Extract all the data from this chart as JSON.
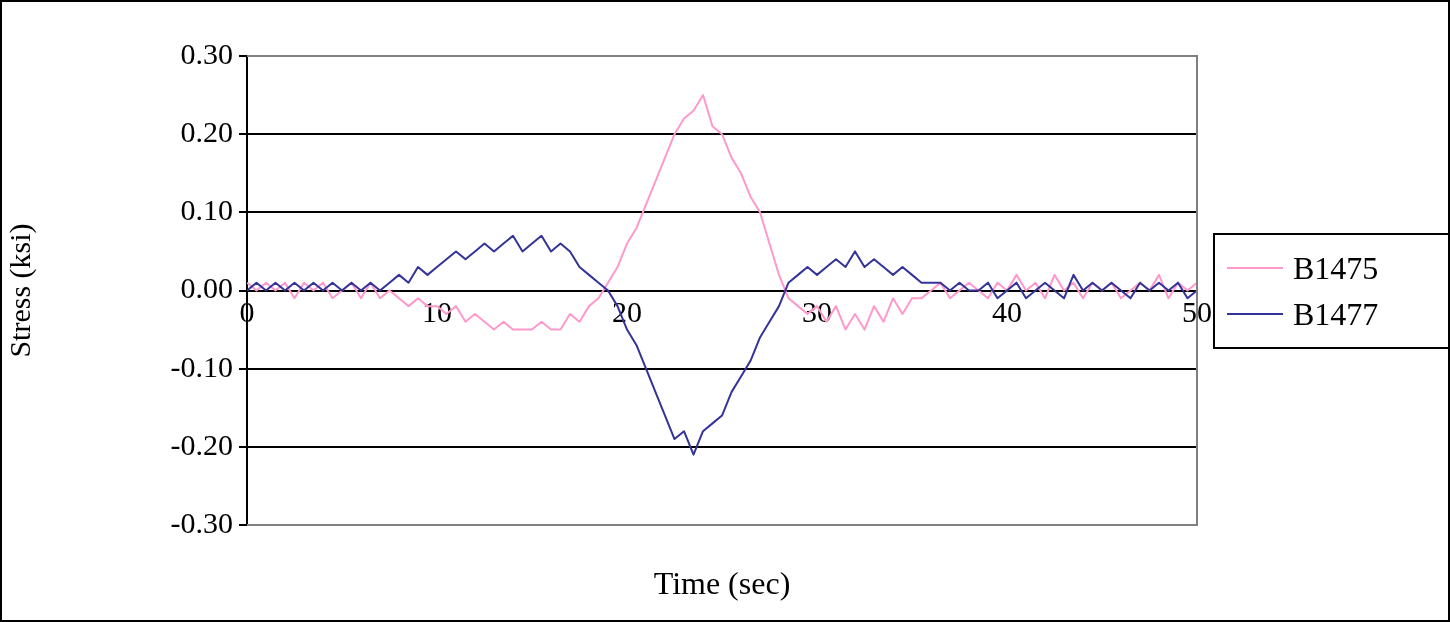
{
  "chart_data": {
    "type": "line",
    "xlabel": "Time (sec)",
    "ylabel": "Stress (ksi)",
    "x": [
      0,
      0.5,
      1,
      1.5,
      2,
      2.5,
      3,
      3.5,
      4,
      4.5,
      5,
      5.5,
      6,
      6.5,
      7,
      7.5,
      8,
      8.5,
      9,
      9.5,
      10,
      10.5,
      11,
      11.5,
      12,
      12.5,
      13,
      13.5,
      14,
      14.5,
      15,
      15.5,
      16,
      16.5,
      17,
      17.5,
      18,
      18.5,
      19,
      19.5,
      20,
      20.5,
      21,
      21.5,
      22,
      22.5,
      23,
      23.5,
      24,
      24.5,
      25,
      25.5,
      26,
      26.5,
      27,
      27.5,
      28,
      28.5,
      29,
      29.5,
      30,
      30.5,
      31,
      31.5,
      32,
      32.5,
      33,
      33.5,
      34,
      34.5,
      35,
      35.5,
      36,
      36.5,
      37,
      37.5,
      38,
      38.5,
      39,
      39.5,
      40,
      40.5,
      41,
      41.5,
      42,
      42.5,
      43,
      43.5,
      44,
      44.5,
      45,
      45.5,
      46,
      46.5,
      47,
      47.5,
      48,
      48.5,
      49,
      49.5,
      50
    ],
    "series": [
      {
        "name": "B1475",
        "color": "#ff99cc",
        "values": [
          0.01,
          0,
          0.01,
          0,
          0.01,
          -0.01,
          0.01,
          0,
          0.01,
          -0.01,
          0,
          0.01,
          -0.01,
          0.01,
          -0.01,
          0,
          -0.01,
          -0.02,
          -0.01,
          -0.02,
          -0.02,
          -0.03,
          -0.02,
          -0.04,
          -0.03,
          -0.04,
          -0.05,
          -0.04,
          -0.05,
          -0.05,
          -0.05,
          -0.04,
          -0.05,
          -0.05,
          -0.03,
          -0.04,
          -0.02,
          -0.01,
          0.01,
          0.03,
          0.06,
          0.08,
          0.11,
          0.14,
          0.17,
          0.2,
          0.22,
          0.23,
          0.25,
          0.21,
          0.2,
          0.17,
          0.15,
          0.12,
          0.1,
          0.06,
          0.02,
          -0.01,
          -0.02,
          -0.03,
          -0.02,
          -0.04,
          -0.02,
          -0.05,
          -0.03,
          -0.05,
          -0.02,
          -0.04,
          -0.01,
          -0.03,
          -0.01,
          -0.01,
          0,
          0.01,
          -0.01,
          0,
          0.01,
          0,
          -0.01,
          0.01,
          0,
          0.02,
          0,
          0.01,
          -0.01,
          0.02,
          0,
          0.01,
          -0.01,
          0.01,
          0,
          0.01,
          -0.01,
          0,
          0.01,
          0,
          0.02,
          -0.01,
          0.01,
          0,
          0.01
        ]
      },
      {
        "name": "B1477",
        "color": "#333399",
        "values": [
          0,
          0.01,
          0,
          0.01,
          0,
          0.01,
          0,
          0.01,
          0,
          0.01,
          0,
          0.01,
          0,
          0.01,
          0,
          0.01,
          0.02,
          0.01,
          0.03,
          0.02,
          0.03,
          0.04,
          0.05,
          0.04,
          0.05,
          0.06,
          0.05,
          0.06,
          0.07,
          0.05,
          0.06,
          0.07,
          0.05,
          0.06,
          0.05,
          0.03,
          0.02,
          0.01,
          0,
          -0.02,
          -0.05,
          -0.07,
          -0.1,
          -0.13,
          -0.16,
          -0.19,
          -0.18,
          -0.21,
          -0.18,
          -0.17,
          -0.16,
          -0.13,
          -0.11,
          -0.09,
          -0.06,
          -0.04,
          -0.02,
          0.01,
          0.02,
          0.03,
          0.02,
          0.03,
          0.04,
          0.03,
          0.05,
          0.03,
          0.04,
          0.03,
          0.02,
          0.03,
          0.02,
          0.01,
          0.01,
          0.01,
          0,
          0.01,
          0,
          0,
          0.01,
          -0.01,
          0,
          0.01,
          -0.01,
          0,
          0.01,
          0,
          -0.01,
          0.02,
          0,
          0.01,
          0,
          0.01,
          0,
          -0.01,
          0.01,
          0,
          0.01,
          0,
          0.01,
          -0.01,
          0
        ]
      }
    ],
    "xlim": [
      0,
      50
    ],
    "xticks": [
      0,
      10,
      20,
      30,
      40,
      50
    ],
    "ylim": [
      -0.3,
      0.3
    ],
    "yticks": [
      {
        "value": -0.3,
        "label": "-0.30"
      },
      {
        "value": -0.2,
        "label": "-0.20"
      },
      {
        "value": -0.1,
        "label": "-0.10"
      },
      {
        "value": 0,
        "label": "0.00"
      },
      {
        "value": 0.1,
        "label": "0.10"
      },
      {
        "value": 0.2,
        "label": "0.20"
      },
      {
        "value": 0.3,
        "label": "0.30"
      }
    ],
    "grid": "y",
    "legend": "right",
    "marker": "none",
    "line_style": "solid"
  }
}
